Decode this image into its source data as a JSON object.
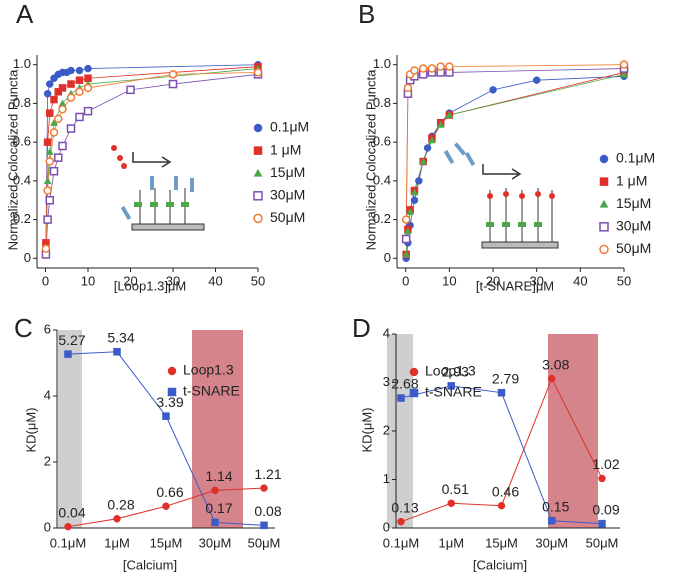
{
  "chart_data": [
    {
      "type": "scatter",
      "title": "A",
      "x_label": "[Loop1.3]μM",
      "y_label": "Normalized Colocalized Puncta",
      "xlim": [
        -2,
        50
      ],
      "ylim": [
        -0.05,
        1.05
      ],
      "xticks": [
        0,
        10,
        20,
        30,
        40,
        50
      ],
      "yticks": [
        0,
        {
          "value": 0.2,
          "label": "0.2"
        },
        {
          "value": 0.4,
          "label": "0.4"
        },
        {
          "value": 0.6,
          "label": "0.6"
        },
        {
          "value": 0.8,
          "label": "0.8"
        },
        {
          "value": 1,
          "label": "1.0"
        }
      ],
      "legend": "right",
      "series": [
        {
          "name": "0.1μM",
          "color": "#3b5cc8",
          "marker": "circle",
          "filled": true,
          "x": [
            0.1,
            0.5,
            1,
            2,
            3,
            4,
            5,
            6,
            8,
            10,
            50
          ],
          "values": [
            0.05,
            0.85,
            0.9,
            0.93,
            0.95,
            0.96,
            0.96,
            0.97,
            0.97,
            0.98,
            1.0
          ]
        },
        {
          "name": "1 μM",
          "color": "#e0302a",
          "marker": "square",
          "filled": true,
          "x": [
            0.1,
            0.5,
            1,
            2,
            3,
            4,
            6,
            8,
            10,
            50
          ],
          "values": [
            0.08,
            0.6,
            0.75,
            0.82,
            0.86,
            0.88,
            0.9,
            0.92,
            0.93,
            0.99
          ]
        },
        {
          "name": "15μM",
          "color": "#4aa84a",
          "marker": "triangle",
          "filled": true,
          "x": [
            0.1,
            0.5,
            1,
            2,
            4,
            6,
            8,
            10,
            50
          ],
          "values": [
            0.05,
            0.4,
            0.55,
            0.7,
            0.8,
            0.85,
            0.88,
            0.9,
            0.98
          ]
        },
        {
          "name": "30μM",
          "color": "#7b4fb0",
          "marker": "square",
          "filled": false,
          "x": [
            0.1,
            0.5,
            1,
            2,
            3,
            4,
            6,
            8,
            10,
            20,
            30,
            50
          ],
          "values": [
            0.02,
            0.2,
            0.3,
            0.45,
            0.52,
            0.58,
            0.67,
            0.73,
            0.76,
            0.87,
            0.9,
            0.95
          ]
        },
        {
          "name": "50μM",
          "color": "#f07a30",
          "marker": "circle",
          "filled": false,
          "x": [
            0.1,
            0.5,
            1,
            2,
            3,
            4,
            6,
            8,
            10,
            30,
            50
          ],
          "values": [
            0.05,
            0.35,
            0.5,
            0.65,
            0.72,
            0.77,
            0.83,
            0.86,
            0.88,
            0.95,
            0.96
          ]
        }
      ]
    },
    {
      "type": "scatter",
      "title": "B",
      "x_label": "[t-SNARE]μM",
      "y_label": "Normalized Colocalized Puncta",
      "xlim": [
        -2,
        50
      ],
      "ylim": [
        -0.05,
        1.05
      ],
      "xticks": [
        0,
        10,
        20,
        30,
        40,
        50
      ],
      "yticks": [
        0,
        {
          "value": 0.2,
          "label": "0.2"
        },
        {
          "value": 0.4,
          "label": "0.4"
        },
        {
          "value": 0.6,
          "label": "0.6"
        },
        {
          "value": 0.8,
          "label": "0.8"
        },
        {
          "value": 1,
          "label": "1.0"
        }
      ],
      "legend": "lower right",
      "series": [
        {
          "name": "0.1μM",
          "color": "#3b5cc8",
          "marker": "circle",
          "filled": true,
          "x": [
            0.1,
            0.5,
            1,
            2,
            3,
            4,
            5,
            6,
            8,
            10,
            20,
            30,
            50
          ],
          "values": [
            0.0,
            0.08,
            0.17,
            0.3,
            0.4,
            0.5,
            0.57,
            0.63,
            0.7,
            0.75,
            0.87,
            0.92,
            0.94
          ]
        },
        {
          "name": "1 μM",
          "color": "#e0302a",
          "marker": "square",
          "filled": true,
          "x": [
            0.1,
            0.5,
            1,
            2,
            4,
            6,
            8,
            10,
            50
          ],
          "values": [
            0.02,
            0.15,
            0.25,
            0.35,
            0.5,
            0.62,
            0.7,
            0.74,
            0.96
          ]
        },
        {
          "name": "15μM",
          "color": "#4aa84a",
          "marker": "triangle",
          "filled": true,
          "x": [
            0.1,
            0.5,
            1,
            2,
            4,
            6,
            8,
            10,
            50
          ],
          "values": [
            0.02,
            0.14,
            0.24,
            0.34,
            0.5,
            0.61,
            0.69,
            0.74,
            0.95
          ]
        },
        {
          "name": "30μM",
          "color": "#7b4fb0",
          "marker": "square",
          "filled": false,
          "x": [
            0.1,
            0.5,
            1,
            2,
            4,
            6,
            8,
            10,
            50
          ],
          "values": [
            0.1,
            0.85,
            0.92,
            0.94,
            0.95,
            0.96,
            0.96,
            0.96,
            0.98
          ]
        },
        {
          "name": "50μM",
          "color": "#f07a30",
          "marker": "circle",
          "filled": false,
          "x": [
            0.1,
            0.5,
            1,
            2,
            4,
            6,
            8,
            10,
            50
          ],
          "values": [
            0.2,
            0.88,
            0.95,
            0.97,
            0.98,
            0.98,
            0.99,
            0.99,
            1.0
          ]
        }
      ]
    },
    {
      "type": "line",
      "title": "C",
      "x_label": "[Calcium]",
      "y_label": "KD(μM)",
      "categories": [
        "0.1μM",
        "1μM",
        "15μM",
        "30μM",
        "50μM"
      ],
      "ylim": [
        0,
        6
      ],
      "yticks": [
        0,
        2,
        4,
        6
      ],
      "legend": "center",
      "series": [
        {
          "name": "Loop1.3",
          "color": "#e0302a",
          "marker": "circle",
          "values": [
            0.04,
            0.28,
            0.66,
            1.14,
            1.21
          ]
        },
        {
          "name": "t-SNARE",
          "color": "#3b5cc8",
          "marker": "square",
          "values": [
            5.27,
            5.34,
            3.39,
            0.17,
            0.08
          ]
        }
      ]
    },
    {
      "type": "line",
      "title": "D",
      "x_label": "[Calcium]",
      "y_label": "KD(μM)",
      "categories": [
        "0.1μM",
        "1μM",
        "15μM",
        "30μM",
        "50μM"
      ],
      "ylim": [
        0,
        4
      ],
      "yticks": [
        0,
        1,
        2,
        3,
        4
      ],
      "legend": "upper left",
      "series": [
        {
          "name": "Loop1.3",
          "color": "#e0302a",
          "marker": "circle",
          "values": [
            0.13,
            0.51,
            0.46,
            3.08,
            1.02
          ]
        },
        {
          "name": "t-SNARE",
          "color": "#3b5cc8",
          "marker": "square",
          "values": [
            2.68,
            2.93,
            2.79,
            0.15,
            0.09
          ]
        }
      ]
    }
  ]
}
